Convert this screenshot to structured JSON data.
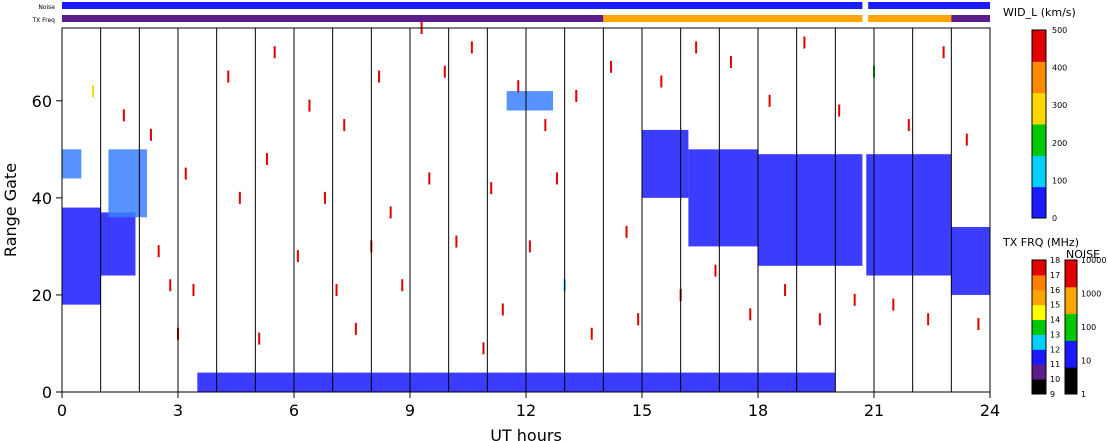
{
  "chart_data": {
    "type": "heatmap",
    "xlabel": "UT hours",
    "ylabel": "Range Gate",
    "xlim": [
      0,
      24
    ],
    "ylim": [
      0,
      75
    ],
    "xticks": [
      "0",
      "3",
      "6",
      "9",
      "12",
      "15",
      "18",
      "21",
      "24"
    ],
    "yticks": [
      "0",
      "20",
      "40",
      "60"
    ],
    "vertical_grid_hours": [
      1,
      2,
      3,
      4,
      5,
      6,
      7,
      8,
      9,
      10,
      11,
      12,
      13,
      14,
      15,
      16,
      17,
      18,
      19,
      20,
      21,
      22,
      23
    ],
    "top_strips": [
      {
        "label": "Noise",
        "segments": [
          {
            "start": 0,
            "end": 20.7,
            "color": "#1a1aff"
          },
          {
            "start": 20.85,
            "end": 24,
            "color": "#1a1aff"
          }
        ]
      },
      {
        "label": "TX Freq",
        "segments": [
          {
            "start": 0,
            "end": 14.0,
            "color": "#5b1e8a"
          },
          {
            "start": 14.0,
            "end": 20.7,
            "color": "#ffa500"
          },
          {
            "start": 20.85,
            "end": 23.0,
            "color": "#ffa500"
          },
          {
            "start": 23.0,
            "end": 24,
            "color": "#5b1e8a"
          }
        ]
      }
    ],
    "echo_regions": [
      {
        "x0": 0.0,
        "x1": 1.0,
        "y0": 18,
        "y1": 38,
        "color": "#1a1aff"
      },
      {
        "x0": 1.0,
        "x1": 1.9,
        "y0": 24,
        "y1": 37,
        "color": "#1a1aff"
      },
      {
        "x0": 0.0,
        "x1": 0.5,
        "y0": 44,
        "y1": 50,
        "color": "#3a7fff"
      },
      {
        "x0": 1.2,
        "x1": 2.2,
        "y0": 36,
        "y1": 50,
        "color": "#3a7fff"
      },
      {
        "x0": 15.0,
        "x1": 16.2,
        "y0": 40,
        "y1": 54,
        "color": "#1a1aff"
      },
      {
        "x0": 16.2,
        "x1": 18.0,
        "y0": 30,
        "y1": 50,
        "color": "#1a1aff"
      },
      {
        "x0": 18.0,
        "x1": 20.7,
        "y0": 26,
        "y1": 49,
        "color": "#1a1aff"
      },
      {
        "x0": 20.8,
        "x1": 23.0,
        "y0": 24,
        "y1": 49,
        "color": "#1a1aff"
      },
      {
        "x0": 23.0,
        "x1": 24.0,
        "y0": 20,
        "y1": 34,
        "color": "#1a1aff"
      },
      {
        "x0": 11.5,
        "x1": 12.7,
        "y0": 58,
        "y1": 62,
        "color": "#3a7fff"
      },
      {
        "x0": 3.5,
        "x1": 20.0,
        "y0": 0,
        "y1": 4,
        "color": "#1a1aff"
      }
    ],
    "scatter_points": [
      {
        "x": 0.8,
        "y": 62,
        "v": 250
      },
      {
        "x": 1.6,
        "y": 57,
        "v": 480
      },
      {
        "x": 2.3,
        "y": 53,
        "v": 470
      },
      {
        "x": 2.5,
        "y": 29,
        "v": 480
      },
      {
        "x": 2.8,
        "y": 22,
        "v": 470
      },
      {
        "x": 3.2,
        "y": 45,
        "v": 460
      },
      {
        "x": 3.4,
        "y": 21,
        "v": 480
      },
      {
        "x": 4.3,
        "y": 65,
        "v": 470
      },
      {
        "x": 4.6,
        "y": 40,
        "v": 480
      },
      {
        "x": 5.1,
        "y": 11,
        "v": 460
      },
      {
        "x": 5.3,
        "y": 48,
        "v": 470
      },
      {
        "x": 5.5,
        "y": 70,
        "v": 480
      },
      {
        "x": 6.1,
        "y": 28,
        "v": 470
      },
      {
        "x": 6.4,
        "y": 59,
        "v": 460
      },
      {
        "x": 7.1,
        "y": 21,
        "v": 480
      },
      {
        "x": 7.3,
        "y": 55,
        "v": 470
      },
      {
        "x": 7.6,
        "y": 13,
        "v": 460
      },
      {
        "x": 8.2,
        "y": 65,
        "v": 480
      },
      {
        "x": 8.5,
        "y": 37,
        "v": 470
      },
      {
        "x": 8.8,
        "y": 22,
        "v": 480
      },
      {
        "x": 9.3,
        "y": 75,
        "v": 460
      },
      {
        "x": 9.5,
        "y": 44,
        "v": 470
      },
      {
        "x": 9.9,
        "y": 66,
        "v": 480
      },
      {
        "x": 10.2,
        "y": 31,
        "v": 460
      },
      {
        "x": 10.6,
        "y": 71,
        "v": 470
      },
      {
        "x": 11.1,
        "y": 42,
        "v": 480
      },
      {
        "x": 11.4,
        "y": 17,
        "v": 470
      },
      {
        "x": 11.8,
        "y": 63,
        "v": 460
      },
      {
        "x": 12.1,
        "y": 30,
        "v": 480
      },
      {
        "x": 12.5,
        "y": 55,
        "v": 470
      },
      {
        "x": 13.0,
        "y": 22,
        "v": 150
      },
      {
        "x": 13.3,
        "y": 61,
        "v": 470
      },
      {
        "x": 13.7,
        "y": 12,
        "v": 480
      },
      {
        "x": 14.2,
        "y": 67,
        "v": 460
      },
      {
        "x": 14.6,
        "y": 33,
        "v": 470
      },
      {
        "x": 14.9,
        "y": 15,
        "v": 480
      },
      {
        "x": 15.5,
        "y": 64,
        "v": 470
      },
      {
        "x": 16.0,
        "y": 20,
        "v": 460
      },
      {
        "x": 16.4,
        "y": 71,
        "v": 480
      },
      {
        "x": 16.9,
        "y": 25,
        "v": 470
      },
      {
        "x": 17.3,
        "y": 68,
        "v": 480
      },
      {
        "x": 17.8,
        "y": 16,
        "v": 460
      },
      {
        "x": 18.3,
        "y": 60,
        "v": 470
      },
      {
        "x": 18.7,
        "y": 21,
        "v": 480
      },
      {
        "x": 19.2,
        "y": 72,
        "v": 470
      },
      {
        "x": 19.6,
        "y": 15,
        "v": 460
      },
      {
        "x": 20.1,
        "y": 58,
        "v": 480
      },
      {
        "x": 20.5,
        "y": 19,
        "v": 470
      },
      {
        "x": 21.0,
        "y": 66,
        "v": 180
      },
      {
        "x": 21.5,
        "y": 18,
        "v": 470
      },
      {
        "x": 21.9,
        "y": 55,
        "v": 460
      },
      {
        "x": 22.4,
        "y": 15,
        "v": 480
      },
      {
        "x": 22.8,
        "y": 70,
        "v": 470
      },
      {
        "x": 23.4,
        "y": 52,
        "v": 460
      },
      {
        "x": 23.7,
        "y": 14,
        "v": 480
      },
      {
        "x": 3.0,
        "y": 12,
        "v": 470
      },
      {
        "x": 6.8,
        "y": 40,
        "v": 480
      },
      {
        "x": 10.9,
        "y": 9,
        "v": 460
      },
      {
        "x": 12.8,
        "y": 44,
        "v": 480
      },
      {
        "x": 8.0,
        "y": 30,
        "v": 470
      }
    ],
    "colorbars": [
      {
        "title": "WID_L (km/s)",
        "type": "continuous",
        "range": [
          0,
          500
        ],
        "ticks": [
          "0",
          "100",
          "200",
          "300",
          "400",
          "500"
        ],
        "colors": [
          "#1a1aff",
          "#00d0ff",
          "#00c800",
          "#ffd700",
          "#ff8c00",
          "#e00000"
        ]
      },
      {
        "title": "TX FRQ (MHz)",
        "type": "discrete",
        "ticks": [
          "9",
          "10",
          "11",
          "12",
          "13",
          "14",
          "15",
          "16",
          "17",
          "18"
        ],
        "colors": [
          "#000000",
          "#5b1e8a",
          "#1a1aff",
          "#00d0ff",
          "#00c800",
          "#ffff00",
          "#ffa500",
          "#ff7f00",
          "#e00000"
        ]
      },
      {
        "title": "NOISE",
        "type": "log",
        "ticks": [
          "1",
          "10",
          "100",
          "1000",
          "10000"
        ],
        "colors": [
          "#000000",
          "#1a1aff",
          "#00c800",
          "#ffa500",
          "#e00000"
        ]
      }
    ]
  }
}
